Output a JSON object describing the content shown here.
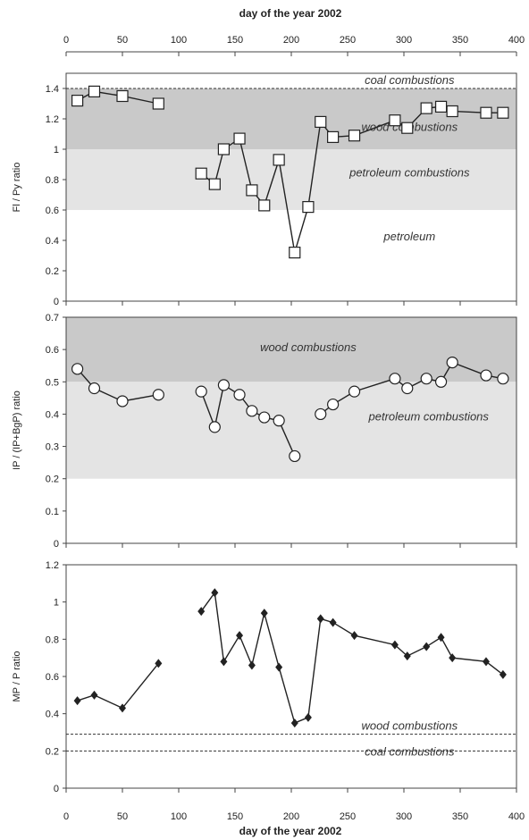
{
  "x_axis": {
    "top_title": "day of the year 2002",
    "bottom_title": "day of the year 2002",
    "range": [
      0,
      400
    ],
    "ticks": [
      0,
      50,
      100,
      150,
      200,
      250,
      300,
      350,
      400
    ]
  },
  "colors": {
    "dark_band": "#c9c9c9",
    "light_band": "#e4e4e4",
    "line": "#222222",
    "marker_fill": "#ffffff"
  },
  "chart_data": [
    {
      "type": "line",
      "marker": "square",
      "ylabel": "Fl / Py ratio",
      "ylim": [
        0,
        1.5
      ],
      "yticks": [
        "0",
        "0.2",
        "0.4",
        "0.6",
        "0.8",
        "1",
        "1.2",
        "1.4"
      ],
      "yticks_values": [
        0,
        0.2,
        0.4,
        0.6,
        0.8,
        1.0,
        1.2,
        1.4
      ],
      "zones": [
        {
          "from": 1.0,
          "to": 1.4,
          "shade": "dark",
          "label": "wood combustions",
          "label_x": 305,
          "label_y": 1.12
        },
        {
          "from": 0.6,
          "to": 1.0,
          "shade": "light",
          "label": "petroleum combustions",
          "label_x": 305,
          "label_y": 0.82
        },
        {
          "from": 0.0,
          "to": 0.6,
          "shade": "none",
          "label": "petroleum",
          "label_x": 305,
          "label_y": 0.4
        }
      ],
      "ref_lines": [
        {
          "y": 1.4,
          "label": "coal combustions",
          "label_x": 305,
          "label_y": 1.43
        }
      ],
      "segments": [
        {
          "x": [
            10,
            25,
            50,
            82
          ],
          "y": [
            1.32,
            1.38,
            1.35,
            1.3
          ]
        },
        {
          "x": [
            120,
            132,
            140,
            154,
            165,
            176,
            189,
            203,
            215,
            226,
            237,
            256,
            292,
            303,
            320,
            333,
            343,
            373,
            388
          ],
          "y": [
            0.84,
            0.77,
            1.0,
            1.07,
            0.73,
            0.63,
            0.93,
            0.32,
            0.62,
            1.18,
            1.08,
            1.09,
            1.19,
            1.14,
            1.27,
            1.28,
            1.25,
            1.24,
            1.24
          ]
        }
      ]
    },
    {
      "type": "line",
      "marker": "circle",
      "ylabel": "IP / (IP+BgP) ratio",
      "ylim": [
        0,
        0.7
      ],
      "yticks": [
        "0",
        "0.1",
        "0.2",
        "0.3",
        "0.4",
        "0.5",
        "0.6",
        "0.7"
      ],
      "yticks_values": [
        0,
        0.1,
        0.2,
        0.3,
        0.4,
        0.5,
        0.6,
        0.7
      ],
      "zones": [
        {
          "from": 0.5,
          "to": 0.7,
          "shade": "dark",
          "label": "wood combustions",
          "label_x": 215,
          "label_y": 0.595
        },
        {
          "from": 0.2,
          "to": 0.5,
          "shade": "light",
          "label": "petroleum combustions",
          "label_x": 322,
          "label_y": 0.38
        }
      ],
      "ref_lines": [],
      "segments": [
        {
          "x": [
            10,
            25,
            50,
            82
          ],
          "y": [
            0.54,
            0.48,
            0.44,
            0.46
          ]
        },
        {
          "x": [
            120,
            132,
            140,
            154,
            165,
            176,
            189,
            203
          ],
          "y": [
            0.47,
            0.36,
            0.49,
            0.46,
            0.41,
            0.39,
            0.38,
            0.27
          ]
        },
        {
          "x": [
            226,
            237,
            256,
            292,
            303,
            320,
            333,
            343,
            373,
            388
          ],
          "y": [
            0.4,
            0.43,
            0.47,
            0.51,
            0.48,
            0.51,
            0.5,
            0.56,
            0.52,
            0.51
          ]
        }
      ]
    },
    {
      "type": "line",
      "marker": "diamond",
      "ylabel": "MP / P ratio",
      "ylim": [
        0,
        1.2
      ],
      "yticks": [
        "0",
        "0.2",
        "0.4",
        "0.6",
        "0.8",
        "1",
        "1.2"
      ],
      "yticks_values": [
        0,
        0.2,
        0.4,
        0.6,
        0.8,
        1.0,
        1.2
      ],
      "zones": [],
      "ref_lines": [
        {
          "y": 0.29,
          "label": "wood combustions",
          "label_x": 305,
          "label_y": 0.315
        },
        {
          "y": 0.2,
          "label": "coal combustions",
          "label_x": 305,
          "label_y": 0.175
        }
      ],
      "segments": [
        {
          "x": [
            10,
            25,
            50,
            82
          ],
          "y": [
            0.47,
            0.5,
            0.43,
            0.67
          ]
        },
        {
          "x": [
            120,
            132,
            140,
            154,
            165,
            176,
            189,
            203,
            215,
            226,
            237,
            256,
            292,
            303,
            320,
            333,
            343,
            373,
            388
          ],
          "y": [
            0.95,
            1.05,
            0.68,
            0.82,
            0.66,
            0.94,
            0.65,
            0.35,
            0.38,
            0.91,
            0.89,
            0.82,
            0.77,
            0.71,
            0.76,
            0.81,
            0.7,
            0.68,
            0.61
          ]
        }
      ]
    }
  ]
}
